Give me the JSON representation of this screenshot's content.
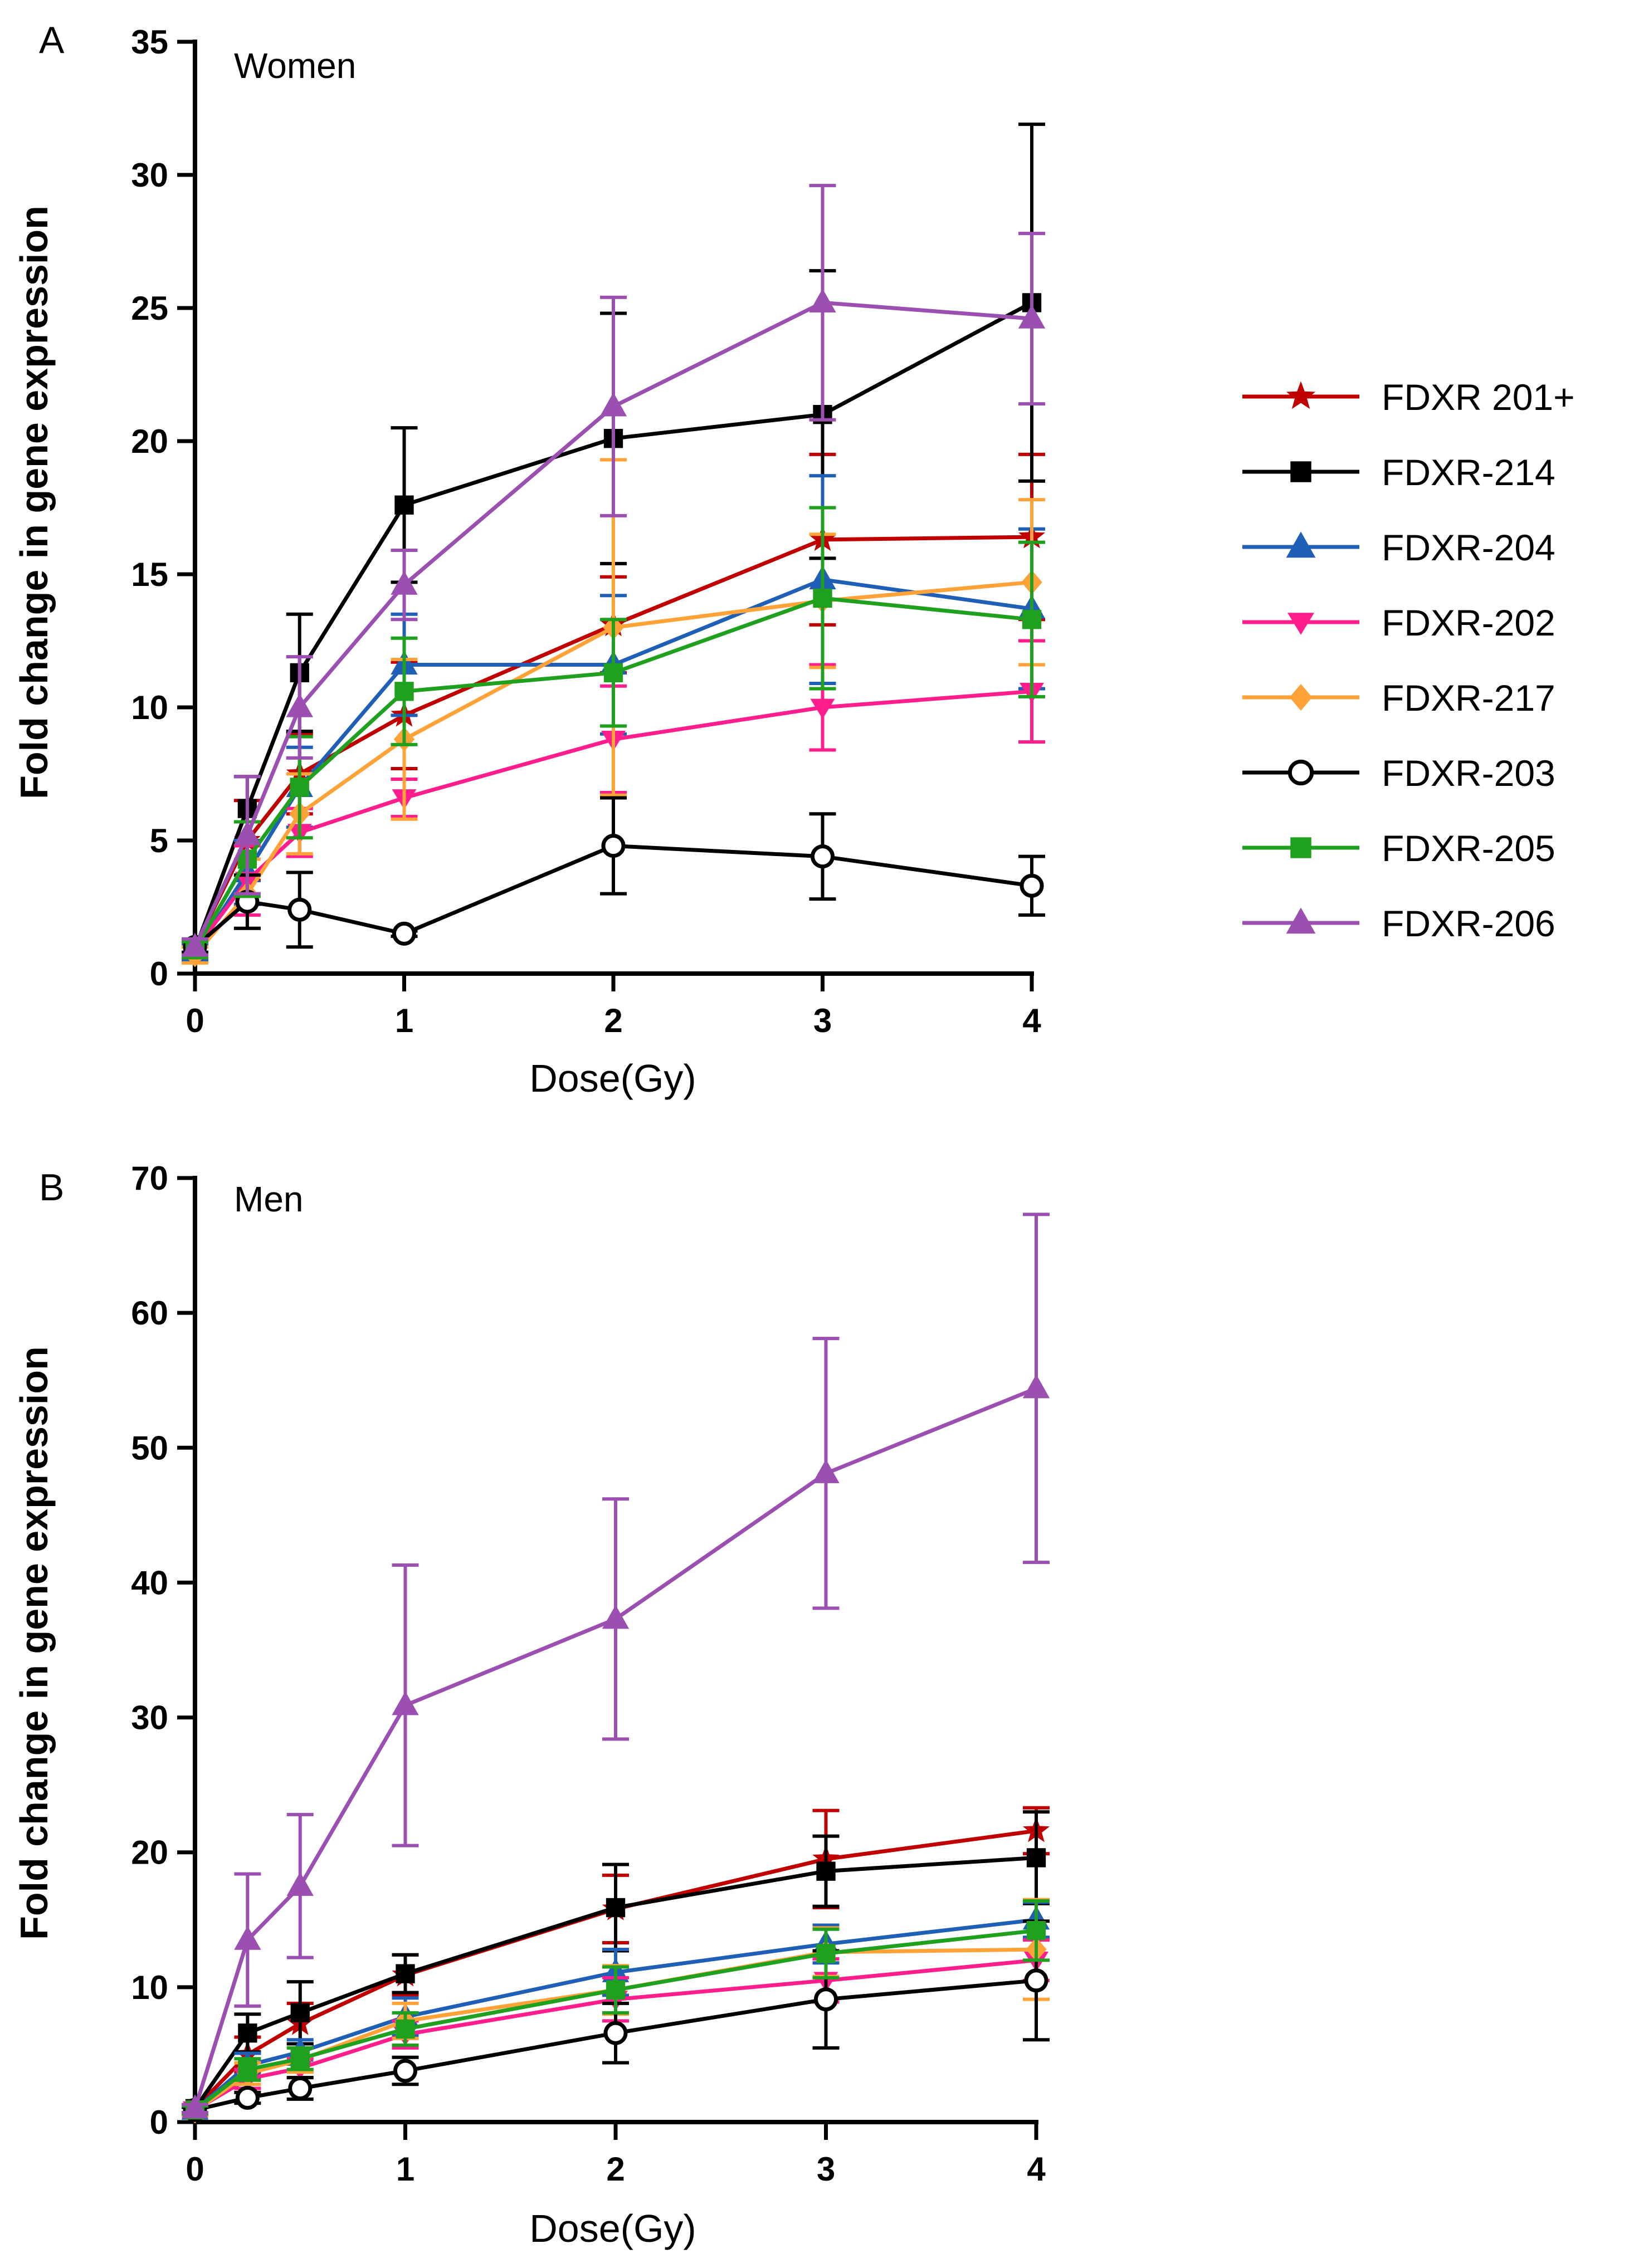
{
  "legend": [
    {
      "name": "FDXR 201+",
      "color": "#c00000",
      "marker": "star"
    },
    {
      "name": "FDXR-214",
      "color": "#000000",
      "marker": "square"
    },
    {
      "name": "FDXR-204",
      "color": "#1f5fb5",
      "marker": "triangle-up"
    },
    {
      "name": "FDXR-202",
      "color": "#ff1e8c",
      "marker": "triangle-down"
    },
    {
      "name": "FDXR-217",
      "color": "#ffa238",
      "marker": "diamond"
    },
    {
      "name": "FDXR-203",
      "color": "#000000",
      "marker": "circle-open"
    },
    {
      "name": "FDXR-205",
      "color": "#1fa01f",
      "marker": "square"
    },
    {
      "name": "FDXR-206",
      "color": "#9b4fb0",
      "marker": "triangle-up"
    }
  ],
  "chart_data": [
    {
      "type": "line",
      "panel_label": "A",
      "subtitle": "Women",
      "xlabel": "Dose(Gy)",
      "ylabel": "Fold change in gene expression",
      "x_ticks": [
        "0",
        "1",
        "2",
        "3",
        "4"
      ],
      "y_ticks": [
        "0",
        "5",
        "10",
        "15",
        "20",
        "25",
        "30",
        "35"
      ],
      "xlim": [
        0,
        4
      ],
      "ylim": [
        0,
        35
      ],
      "x": [
        0,
        0.25,
        0.5,
        1,
        2,
        3,
        4
      ],
      "series": [
        {
          "name": "FDXR 201+",
          "values": [
            1.0,
            5.0,
            7.5,
            9.7,
            13.1,
            16.3,
            16.4
          ],
          "errors": [
            0.3,
            1.5,
            1.5,
            2.0,
            1.8,
            3.2,
            3.1
          ]
        },
        {
          "name": "FDXR-214",
          "values": [
            0.9,
            6.2,
            11.3,
            17.6,
            20.1,
            21.0,
            25.2
          ],
          "errors": [
            0.3,
            1.2,
            2.2,
            2.9,
            4.7,
            5.4,
            6.7
          ]
        },
        {
          "name": "FDXR-204",
          "values": [
            0.8,
            3.8,
            7.0,
            11.6,
            11.6,
            14.8,
            13.7
          ],
          "errors": [
            0.3,
            1.2,
            1.5,
            1.9,
            2.6,
            3.9,
            3.0
          ]
        },
        {
          "name": "FDXR-202",
          "values": [
            0.9,
            3.5,
            5.3,
            6.6,
            8.8,
            10.0,
            10.6
          ],
          "errors": [
            0.3,
            1.3,
            0.9,
            0.7,
            2.0,
            1.6,
            1.9
          ]
        },
        {
          "name": "FDXR-217",
          "values": [
            0.7,
            3.0,
            6.0,
            8.8,
            13.0,
            14.0,
            14.7
          ],
          "errors": [
            0.3,
            1.3,
            1.5,
            3.0,
            6.3,
            2.5,
            3.1
          ]
        },
        {
          "name": "FDXR-203",
          "values": [
            1.0,
            2.7,
            2.4,
            1.5,
            4.8,
            4.4,
            3.3
          ],
          "errors": [
            0.2,
            1.0,
            1.4,
            0.1,
            1.8,
            1.6,
            1.1
          ]
        },
        {
          "name": "FDXR-205",
          "values": [
            0.9,
            4.3,
            7.0,
            10.6,
            11.3,
            14.1,
            13.3
          ],
          "errors": [
            0.3,
            1.4,
            1.9,
            2.0,
            2.0,
            3.4,
            2.9
          ]
        },
        {
          "name": "FDXR-206",
          "values": [
            1.0,
            5.2,
            10.0,
            14.6,
            21.3,
            25.2,
            24.6
          ],
          "errors": [
            0.3,
            2.2,
            1.9,
            1.3,
            4.1,
            4.4,
            3.2
          ]
        }
      ]
    },
    {
      "type": "line",
      "panel_label": "B",
      "subtitle": "Men",
      "xlabel": "Dose(Gy)",
      "ylabel": "Fold change in gene expression",
      "x_ticks": [
        "0",
        "1",
        "2",
        "3",
        "4"
      ],
      "y_ticks": [
        "0",
        "10",
        "20",
        "30",
        "40",
        "50",
        "60",
        "70"
      ],
      "xlim": [
        0,
        4
      ],
      "ylim": [
        0,
        70
      ],
      "x": [
        0,
        0.25,
        0.5,
        1,
        2,
        3,
        4
      ],
      "series": [
        {
          "name": "FDXR 201+",
          "values": [
            1.0,
            5.0,
            7.3,
            10.9,
            15.8,
            19.5,
            21.6
          ],
          "errors": [
            0.3,
            1.3,
            1.5,
            1.5,
            2.5,
            3.6,
            1.7
          ]
        },
        {
          "name": "FDXR-214",
          "values": [
            1.0,
            6.6,
            8.1,
            11.0,
            15.9,
            18.6,
            19.6
          ],
          "errors": [
            0.3,
            1.4,
            2.3,
            1.4,
            3.2,
            2.6,
            3.4
          ]
        },
        {
          "name": "FDXR-204",
          "values": [
            0.9,
            4.2,
            5.2,
            7.8,
            11.1,
            13.2,
            15.0
          ],
          "errors": [
            0.3,
            0.9,
            0.9,
            1.4,
            1.7,
            1.4,
            1.3
          ]
        },
        {
          "name": "FDXR-202",
          "values": [
            0.9,
            3.2,
            4.0,
            6.5,
            9.1,
            10.5,
            12.0
          ],
          "errors": [
            0.3,
            0.7,
            0.7,
            1.0,
            1.6,
            1.6,
            1.5
          ]
        },
        {
          "name": "FDXR-217",
          "values": [
            0.8,
            3.6,
            4.6,
            7.5,
            9.8,
            12.6,
            12.8
          ],
          "errors": [
            0.3,
            0.8,
            0.9,
            1.3,
            1.8,
            1.8,
            3.7
          ]
        },
        {
          "name": "FDXR-203",
          "values": [
            0.9,
            1.8,
            2.5,
            3.8,
            6.6,
            9.1,
            10.5
          ],
          "errors": [
            0.2,
            0.4,
            0.8,
            1.0,
            2.2,
            3.6,
            4.4
          ]
        },
        {
          "name": "FDXR-205",
          "values": [
            0.9,
            3.9,
            4.7,
            6.9,
            9.8,
            12.5,
            14.2
          ],
          "errors": [
            0.3,
            0.8,
            0.8,
            1.2,
            1.7,
            1.8,
            2.2
          ]
        },
        {
          "name": "FDXR-206",
          "values": [
            1.0,
            13.5,
            17.5,
            30.9,
            37.3,
            48.1,
            54.4
          ],
          "errors": [
            0.3,
            4.9,
            5.3,
            10.4,
            8.9,
            10.0,
            12.9
          ]
        }
      ]
    }
  ]
}
